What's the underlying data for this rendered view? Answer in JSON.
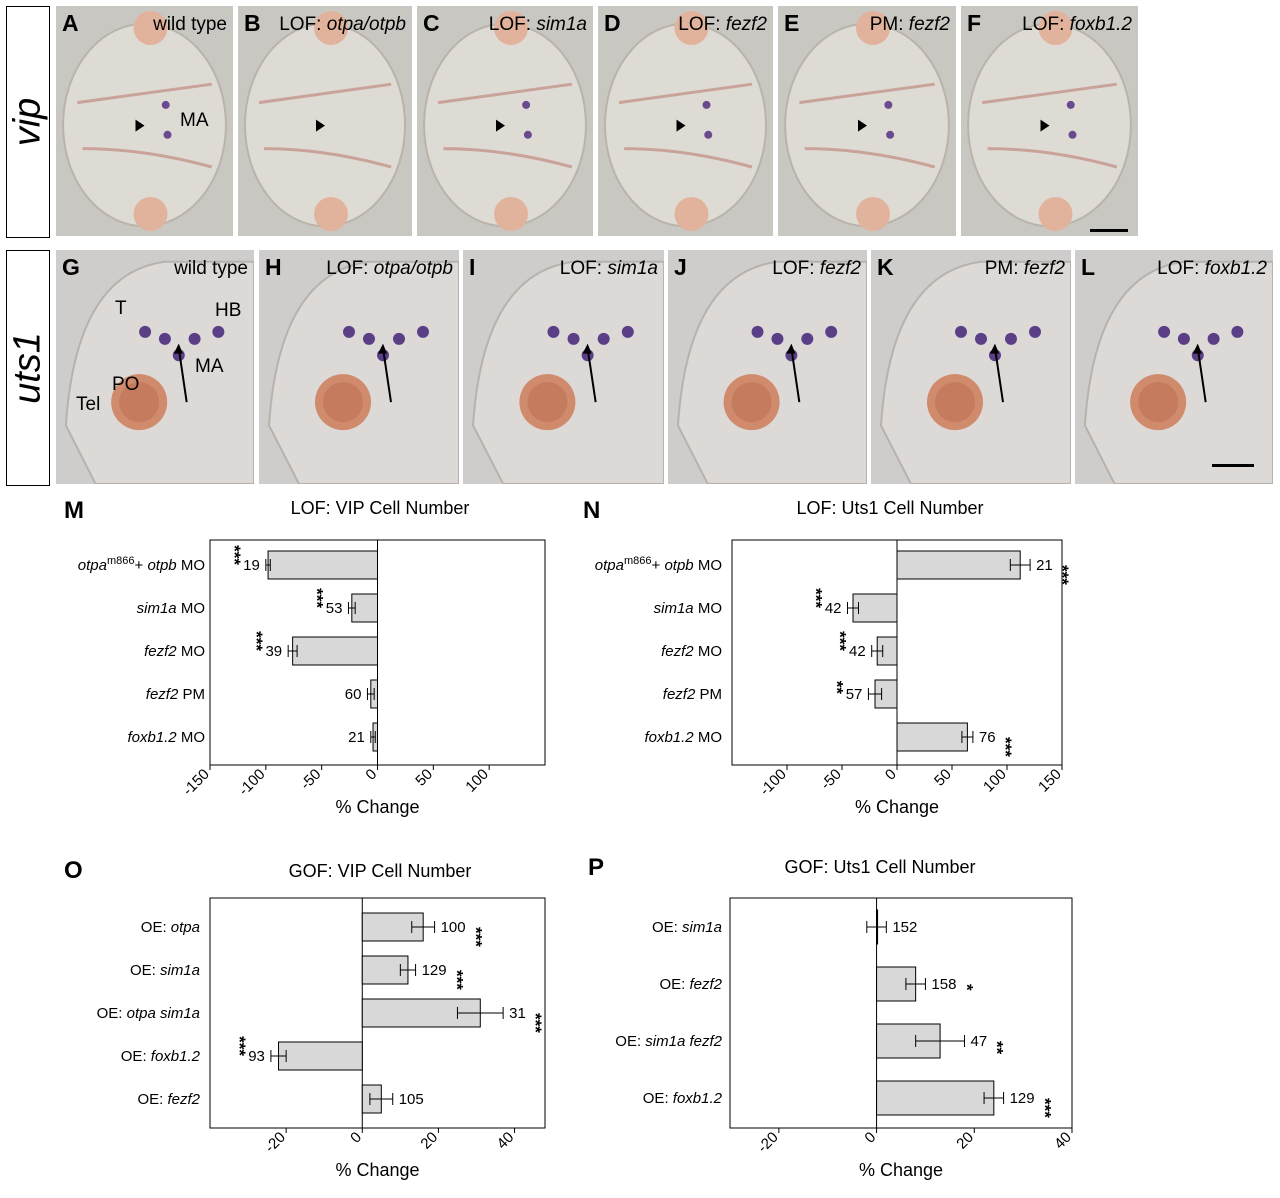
{
  "rows": [
    {
      "label": "vip",
      "panels": [
        {
          "letter": "A",
          "prefix": "",
          "gene": "wild type",
          "italic": false
        },
        {
          "letter": "B",
          "prefix": "LOF: ",
          "gene": "otpa/otpb",
          "italic": true
        },
        {
          "letter": "C",
          "prefix": "LOF: ",
          "gene": "sim1a",
          "italic": true
        },
        {
          "letter": "D",
          "prefix": "LOF: ",
          "gene": "fezf2",
          "italic": true
        },
        {
          "letter": "E",
          "prefix": "PM: ",
          "gene": "fezf2",
          "italic": true
        },
        {
          "letter": "F",
          "prefix": "LOF: ",
          "gene": "foxb1.2",
          "italic": true
        }
      ],
      "annotations": [
        "MA"
      ]
    },
    {
      "label": "uts1",
      "panels": [
        {
          "letter": "G",
          "prefix": "",
          "gene": "wild type",
          "italic": false
        },
        {
          "letter": "H",
          "prefix": "LOF: ",
          "gene": "otpa/otpb",
          "italic": true
        },
        {
          "letter": "I",
          "prefix": "LOF: ",
          "gene": "sim1a",
          "italic": true
        },
        {
          "letter": "J",
          "prefix": "LOF: ",
          "gene": "fezf2",
          "italic": true
        },
        {
          "letter": "K",
          "prefix": "PM: ",
          "gene": "fezf2",
          "italic": true
        },
        {
          "letter": "L",
          "prefix": "LOF: ",
          "gene": "foxb1.2",
          "italic": true
        }
      ],
      "annotations": [
        "T",
        "HB",
        "MA",
        "PO",
        "Tel"
      ]
    }
  ],
  "chart_data": [
    {
      "panel": "M",
      "type": "bar",
      "orientation": "horizontal",
      "title": "LOF: VIP Cell Number",
      "xlabel": "% Change",
      "xlim": [
        -150,
        150
      ],
      "xticks": [
        "-150",
        "-100",
        "-50",
        "0",
        "50",
        "100"
      ],
      "categories": [
        {
          "pre": "otpa",
          "sup": "m866",
          "post": "+ ",
          "gene2": "otpb",
          "suffix": " MO"
        },
        {
          "pre": "sim1a",
          "suffix": " MO"
        },
        {
          "pre": "fezf2",
          "suffix": " MO"
        },
        {
          "pre": "fezf2",
          "suffix": " PM"
        },
        {
          "pre": "foxb1.2",
          "suffix": " MO"
        }
      ],
      "values": [
        -98,
        -23,
        -76,
        -6,
        -4
      ],
      "errors": [
        2,
        3,
        4,
        3,
        2
      ],
      "n": [
        "19",
        "53",
        "39",
        "60",
        "21"
      ],
      "significance": [
        "***",
        "***",
        "***",
        "",
        ""
      ]
    },
    {
      "panel": "N",
      "type": "bar",
      "orientation": "horizontal",
      "title": "LOF: Uts1 Cell Number",
      "xlabel": "% Change",
      "xlim": [
        -150,
        150
      ],
      "xticks": [
        "-100",
        "-50",
        "0",
        "50",
        "100",
        "150"
      ],
      "categories": [
        {
          "pre": "otpa",
          "sup": "m866",
          "post": "+ ",
          "gene2": "otpb",
          "suffix": " MO"
        },
        {
          "pre": "sim1a",
          "suffix": " MO"
        },
        {
          "pre": "fezf2",
          "suffix": " MO"
        },
        {
          "pre": "fezf2",
          "suffix": " PM"
        },
        {
          "pre": "foxb1.2",
          "suffix": " MO"
        }
      ],
      "values": [
        112,
        -40,
        -18,
        -20,
        64
      ],
      "errors": [
        9,
        5,
        5,
        6,
        5
      ],
      "n": [
        "21",
        "42",
        "42",
        "57",
        "76"
      ],
      "significance": [
        "***",
        "***",
        "***",
        "**",
        "***"
      ]
    },
    {
      "panel": "O",
      "type": "bar",
      "orientation": "horizontal",
      "title": "GOF: VIP Cell Number",
      "xlabel": "% Change",
      "xlim": [
        -40,
        48
      ],
      "xticks": [
        "-20",
        "0",
        "20",
        "40"
      ],
      "categories": [
        {
          "pre": "OE: ",
          "gene": "otpa"
        },
        {
          "pre": "OE: ",
          "gene": "sim1a"
        },
        {
          "pre": "OE: ",
          "gene": "otpa sim1a"
        },
        {
          "pre": "OE: ",
          "gene": "foxb1.2"
        },
        {
          "pre": "OE: ",
          "gene": "fezf2"
        }
      ],
      "values": [
        16,
        12,
        31,
        -22,
        5
      ],
      "errors": [
        3,
        2,
        6,
        2,
        3
      ],
      "n": [
        "100",
        "129",
        "31",
        "93",
        "105"
      ],
      "significance": [
        "***",
        "***",
        "***",
        "***",
        ""
      ]
    },
    {
      "panel": "P",
      "type": "bar",
      "orientation": "horizontal",
      "title": "GOF: Uts1 Cell Number",
      "xlabel": "% Change",
      "xlim": [
        -30,
        40
      ],
      "xticks": [
        "-20",
        "0",
        "20",
        "40"
      ],
      "categories": [
        {
          "pre": "OE: ",
          "gene": "sim1a"
        },
        {
          "pre": "OE: ",
          "gene": "fezf2"
        },
        {
          "pre": "OE: ",
          "gene": "sim1a fezf2"
        },
        {
          "pre": "OE: ",
          "gene": "foxb1.2"
        }
      ],
      "values": [
        0,
        8,
        13,
        24
      ],
      "errors": [
        2,
        2,
        5,
        2
      ],
      "n": [
        "152",
        "158",
        "47",
        "129"
      ],
      "significance": [
        "",
        "*",
        "**",
        "***"
      ]
    }
  ]
}
